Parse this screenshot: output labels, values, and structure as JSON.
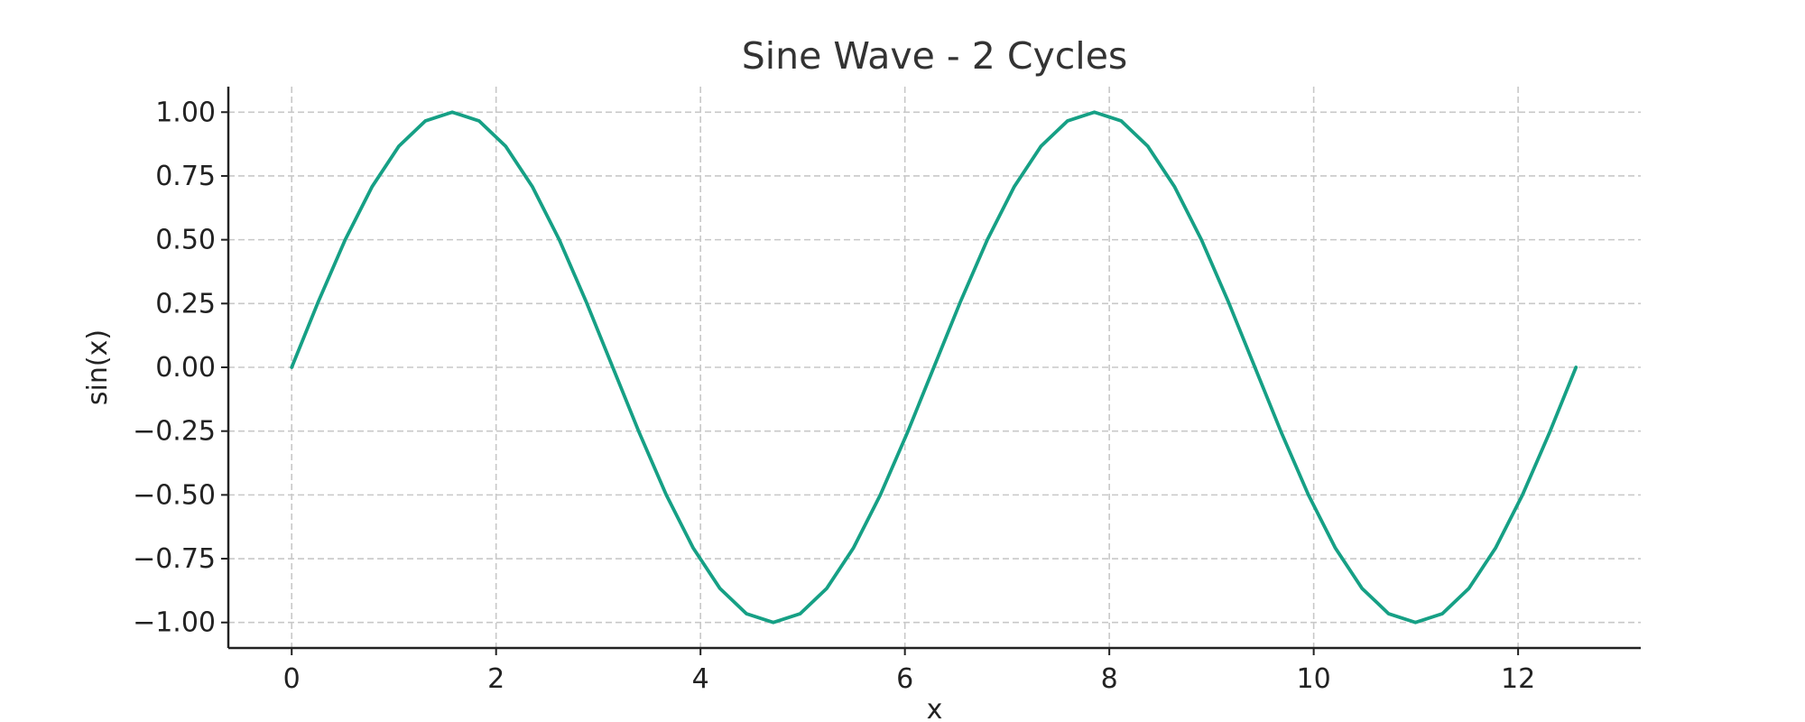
{
  "chart_data": {
    "type": "line",
    "title": "Sine Wave - 2 Cycles",
    "xlabel": "x",
    "ylabel": "sin(x)",
    "xlim": [
      -0.62,
      13.2
    ],
    "ylim": [
      -1.1,
      1.1
    ],
    "xticks": [
      0,
      2,
      4,
      6,
      8,
      10,
      12
    ],
    "xtick_labels": [
      "0",
      "2",
      "4",
      "6",
      "8",
      "10",
      "12"
    ],
    "yticks": [
      1.0,
      0.75,
      0.5,
      0.25,
      0.0,
      -0.25,
      -0.5,
      -0.75,
      -1.0
    ],
    "ytick_labels": [
      "1.00",
      "0.75",
      "0.50",
      "0.25",
      "0.00",
      "−0.25",
      "−0.50",
      "−0.75",
      "−1.00"
    ],
    "grid": true,
    "series": [
      {
        "color": "#16a085",
        "x": [
          0.0,
          0.2618,
          0.5236,
          0.7854,
          1.0472,
          1.309,
          1.5708,
          1.8326,
          2.0944,
          2.3562,
          2.618,
          2.8798,
          3.1416,
          3.4034,
          3.6652,
          3.927,
          4.1888,
          4.4506,
          4.7124,
          4.9742,
          5.236,
          5.4978,
          5.7596,
          6.0214,
          6.2832,
          6.545,
          6.8068,
          7.0686,
          7.3304,
          7.5922,
          7.854,
          8.1158,
          8.3776,
          8.6394,
          8.9012,
          9.163,
          9.4248,
          9.6866,
          9.9484,
          10.2102,
          10.472,
          10.7338,
          10.9956,
          11.2574,
          11.5192,
          11.781,
          12.0428,
          12.3046,
          12.5664
        ],
        "y": [
          0.0,
          0.2588,
          0.5,
          0.7071,
          0.866,
          0.9659,
          1.0,
          0.9659,
          0.866,
          0.7071,
          0.5,
          0.2588,
          0.0,
          -0.2588,
          -0.5,
          -0.7071,
          -0.866,
          -0.9659,
          -1.0,
          -0.9659,
          -0.866,
          -0.7071,
          -0.5,
          -0.2588,
          0.0,
          0.2588,
          0.5,
          0.7071,
          0.866,
          0.9659,
          1.0,
          0.9659,
          0.866,
          0.7071,
          0.5,
          0.2588,
          0.0,
          -0.2588,
          -0.5,
          -0.7071,
          -0.866,
          -0.9659,
          -1.0,
          -0.9659,
          -0.866,
          -0.7071,
          -0.5,
          -0.2588,
          0.0
        ]
      }
    ]
  }
}
